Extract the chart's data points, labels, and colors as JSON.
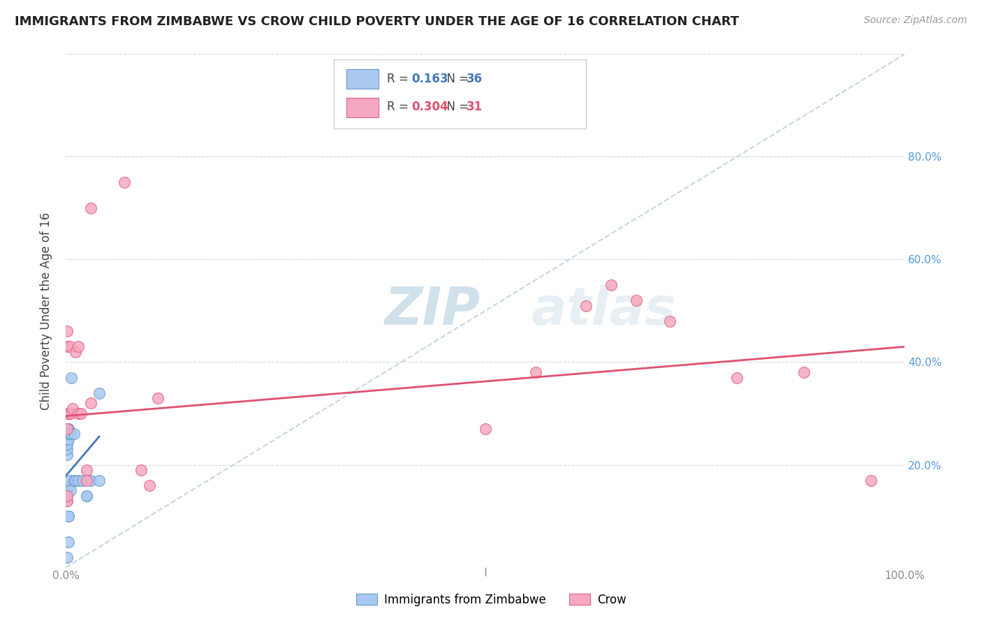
{
  "title": "IMMIGRANTS FROM ZIMBABWE VS CROW CHILD POVERTY UNDER THE AGE OF 16 CORRELATION CHART",
  "source": "Source: ZipAtlas.com",
  "ylabel": "Child Poverty Under the Age of 16",
  "xlim": [
    0,
    1.0
  ],
  "ylim": [
    0,
    1.0
  ],
  "blue_R": "0.163",
  "blue_N": "36",
  "pink_R": "0.304",
  "pink_N": "31",
  "blue_color": "#aac9f0",
  "pink_color": "#f5a8c0",
  "blue_edge_color": "#6699cc",
  "pink_edge_color": "#e06080",
  "blue_line_color": "#4477bb",
  "pink_line_color": "#e05070",
  "trend_dash_color": "#b8ccd8",
  "right_tick_color": "#5599dd",
  "watermark_color": "#cddde8",
  "blue_scatter_x": [
    0.002,
    0.002,
    0.002,
    0.002,
    0.002,
    0.002,
    0.002,
    0.002,
    0.002,
    0.002,
    0.002,
    0.003,
    0.003,
    0.003,
    0.003,
    0.003,
    0.003,
    0.004,
    0.004,
    0.004,
    0.005,
    0.005,
    0.006,
    0.006,
    0.007,
    0.01,
    0.01,
    0.012,
    0.015,
    0.02,
    0.025,
    0.025,
    0.03,
    0.04,
    0.04,
    0.002
  ],
  "blue_scatter_y": [
    0.22,
    0.23,
    0.24,
    0.25,
    0.25,
    0.26,
    0.26,
    0.26,
    0.13,
    0.14,
    0.15,
    0.25,
    0.27,
    0.27,
    0.1,
    0.1,
    0.05,
    0.26,
    0.16,
    0.16,
    0.26,
    0.17,
    0.26,
    0.15,
    0.37,
    0.26,
    0.17,
    0.17,
    0.17,
    0.17,
    0.14,
    0.14,
    0.17,
    0.34,
    0.17,
    0.02
  ],
  "pink_scatter_x": [
    0.002,
    0.002,
    0.002,
    0.002,
    0.002,
    0.002,
    0.005,
    0.005,
    0.006,
    0.008,
    0.012,
    0.015,
    0.015,
    0.018,
    0.025,
    0.025,
    0.03,
    0.03,
    0.07,
    0.09,
    0.1,
    0.11,
    0.5,
    0.56,
    0.62,
    0.65,
    0.68,
    0.72,
    0.8,
    0.88,
    0.96
  ],
  "pink_scatter_y": [
    0.27,
    0.3,
    0.43,
    0.46,
    0.13,
    0.14,
    0.3,
    0.43,
    0.3,
    0.31,
    0.42,
    0.3,
    0.43,
    0.3,
    0.19,
    0.17,
    0.32,
    0.7,
    0.75,
    0.19,
    0.16,
    0.33,
    0.27,
    0.38,
    0.51,
    0.55,
    0.52,
    0.48,
    0.37,
    0.38,
    0.17
  ],
  "pink_line_x0": 0.0,
  "pink_line_y0": 0.295,
  "pink_line_x1": 1.0,
  "pink_line_y1": 0.43,
  "blue_line_x0": 0.0,
  "blue_line_y0": 0.178,
  "blue_line_x1": 0.04,
  "blue_line_y1": 0.255
}
